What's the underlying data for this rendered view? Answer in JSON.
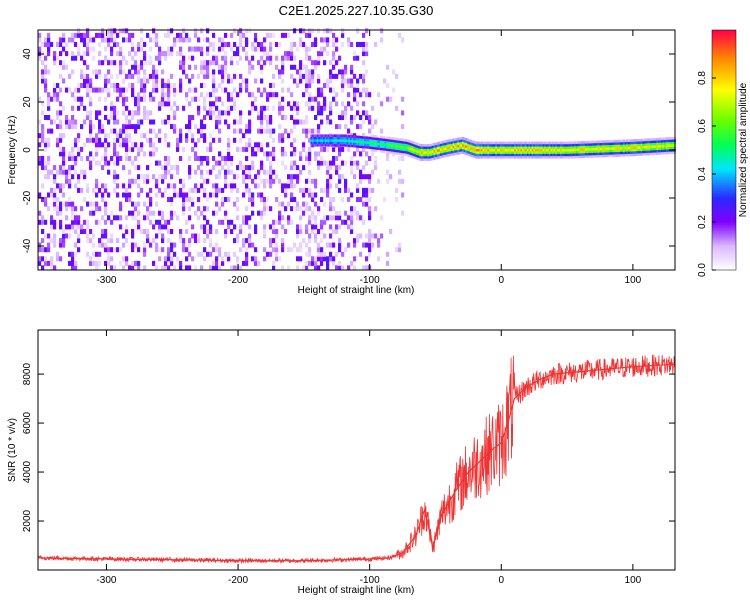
{
  "title": "C2E1.2025.227.10.35.G30",
  "chart_data": [
    {
      "type": "heatmap",
      "xlabel": "Height of straight line (km)",
      "ylabel": "Frequency (Hz)",
      "xlim": [
        -352,
        132
      ],
      "ylim": [
        -50,
        50
      ],
      "xticks": [
        -300,
        -200,
        -100,
        0,
        100
      ],
      "yticks": [
        -40,
        -20,
        0,
        20,
        40
      ],
      "colorbar": {
        "label": "Normalized spectral amplitude",
        "range": [
          0,
          1
        ],
        "ticks": [
          "0.0",
          "0.2",
          "0.4",
          "0.6",
          "0.8"
        ]
      },
      "noise_region_xmax_km": -75,
      "signal_band": {
        "x": [
          -145,
          -120,
          -100,
          -85,
          -72,
          -62,
          -55,
          -40,
          -30,
          -20,
          -10,
          0,
          50,
          100,
          132
        ],
        "center_hz": [
          4,
          4,
          3,
          2,
          1,
          -1,
          -1,
          1,
          2,
          0,
          0,
          0,
          0,
          1,
          2
        ],
        "peak_amplitude": [
          0.45,
          0.5,
          0.55,
          0.6,
          0.7,
          0.85,
          0.9,
          0.95,
          0.9,
          0.95,
          0.9,
          0.9,
          0.85,
          0.85,
          0.8
        ]
      }
    },
    {
      "type": "line",
      "xlabel": "Height of straight line (km)",
      "ylabel": "SNR (10 * v/v)",
      "xlim": [
        -352,
        132
      ],
      "ylim": [
        0,
        9800
      ],
      "xticks": [
        -300,
        -200,
        -100,
        0,
        100
      ],
      "yticks": [
        2000,
        4000,
        6000,
        8000
      ],
      "series": [
        {
          "color": "#ee3333",
          "x": [
            -352,
            -300,
            -250,
            -200,
            -150,
            -120,
            -100,
            -85,
            -75,
            -65,
            -58,
            -52,
            -45,
            -35,
            -25,
            -15,
            -5,
            0,
            5,
            10,
            20,
            30,
            40,
            60,
            80,
            100,
            132
          ],
          "y": [
            500,
            450,
            420,
            380,
            380,
            420,
            450,
            500,
            700,
            1400,
            2500,
            900,
            2300,
            3200,
            4000,
            4500,
            5000,
            5200,
            6000,
            7000,
            7500,
            7800,
            8000,
            8100,
            8200,
            8300,
            8400
          ]
        }
      ]
    }
  ]
}
